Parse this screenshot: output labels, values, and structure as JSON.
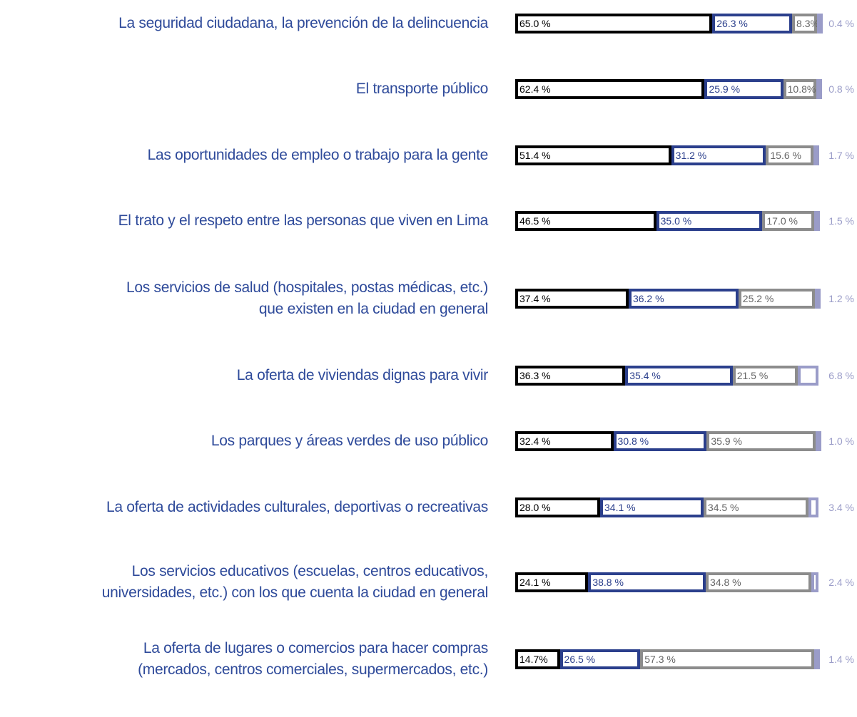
{
  "chart_data": {
    "type": "stacked-bar-horizontal",
    "categories": [
      "La seguridad ciudadana, la prevención de la delincuencia",
      "El transporte público",
      "Las oportunidades de empleo o trabajo para la gente",
      "El trato y el respeto entre las personas que viven en Lima",
      "Los servicios de salud (hospitales, postas médicas, etc.)\nque existen en la ciudad en general",
      "La oferta de viviendas dignas para vivir",
      "Los parques y áreas verdes de uso público",
      "La oferta de actividades culturales, deportivas o recreativas",
      "Los servicios educativos (escuelas, centros educativos,\nuniversidades, etc.) con los que cuenta la ciudad en general",
      "La oferta de lugares o comercios para hacer compras\n(mercados, centros comerciales, supermercados, etc.)"
    ],
    "series": [
      {
        "color": "#000000",
        "values": [
          65.0,
          62.4,
          51.4,
          46.5,
          37.4,
          36.3,
          32.4,
          28.0,
          24.1,
          14.7
        ],
        "value_labels": [
          "65.0 %",
          "62.4 %",
          "51.4 %",
          "46.5 %",
          "37.4 %",
          "36.3 %",
          "32.4 %",
          "28.0 %",
          "24.1 %",
          "14.7%"
        ]
      },
      {
        "color": "#2b3f8c",
        "values": [
          26.3,
          25.9,
          31.2,
          35.0,
          36.2,
          35.4,
          30.8,
          34.1,
          38.8,
          26.5
        ],
        "value_labels": [
          "26.3 %",
          "25.9 %",
          "31.2 %",
          "35.0 %",
          "36.2 %",
          "35.4 %",
          "30.8 %",
          "34.1 %",
          "38.8 %",
          "26.5 %"
        ]
      },
      {
        "color": "#8c8c8c",
        "values": [
          8.3,
          10.8,
          15.6,
          17.0,
          25.2,
          21.5,
          35.9,
          34.5,
          34.8,
          57.3
        ],
        "value_labels": [
          "8.3%",
          "10.8%",
          "15.6 %",
          "17.0 %",
          "25.2 %",
          "21.5 %",
          "35.9 %",
          "34.5 %",
          "34.8 %",
          "57.3 %"
        ]
      },
      {
        "color": "#9a9cc8",
        "values": [
          0.4,
          0.8,
          1.7,
          1.5,
          1.2,
          6.8,
          1.0,
          3.4,
          2.4,
          1.4
        ],
        "value_labels": [
          "0.4 %",
          "0.8 %",
          "1.7 %",
          "1.5 %",
          "1.2 %",
          "6.8 %",
          "1.0 %",
          "3.4 %",
          "2.4 %",
          "1.4 %"
        ]
      }
    ]
  }
}
